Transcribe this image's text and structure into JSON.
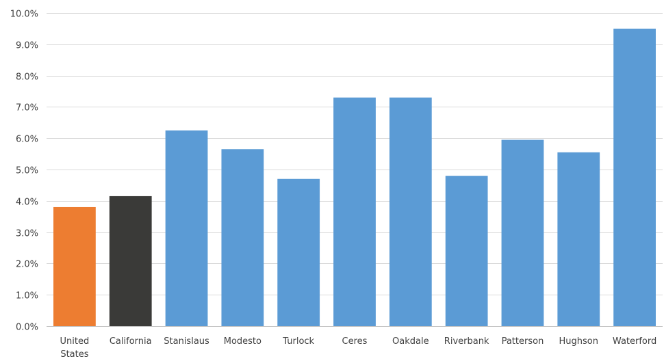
{
  "chart_data": {
    "type": "bar",
    "categories": [
      "United States",
      "California",
      "Stanislaus",
      "Modesto",
      "Turlock",
      "Ceres",
      "Oakdale",
      "Riverbank",
      "Patterson",
      "Hughson",
      "Waterford"
    ],
    "category_lines": [
      [
        "United",
        "States"
      ],
      [
        "California"
      ],
      [
        "Stanislaus"
      ],
      [
        "Modesto"
      ],
      [
        "Turlock"
      ],
      [
        "Ceres"
      ],
      [
        "Oakdale"
      ],
      [
        "Riverbank"
      ],
      [
        "Patterson"
      ],
      [
        "Hughson"
      ],
      [
        "Waterford"
      ]
    ],
    "values": [
      3.8,
      4.15,
      6.25,
      5.65,
      4.7,
      7.3,
      7.3,
      4.8,
      5.95,
      5.55,
      9.5
    ],
    "colors": [
      "#ED7D31",
      "#3A3A38",
      "#5B9BD5",
      "#5B9BD5",
      "#5B9BD5",
      "#5B9BD5",
      "#5B9BD5",
      "#5B9BD5",
      "#5B9BD5",
      "#5B9BD5",
      "#5B9BD5"
    ],
    "ylim": [
      0,
      10
    ],
    "y_ticks": [
      0,
      1,
      2,
      3,
      4,
      5,
      6,
      7,
      8,
      9,
      10
    ],
    "y_tick_labels": [
      "0.0%",
      "1.0%",
      "2.0%",
      "3.0%",
      "4.0%",
      "5.0%",
      "6.0%",
      "7.0%",
      "8.0%",
      "9.0%",
      "10.0%"
    ],
    "grid": true,
    "title": "",
    "xlabel": "",
    "ylabel": ""
  }
}
